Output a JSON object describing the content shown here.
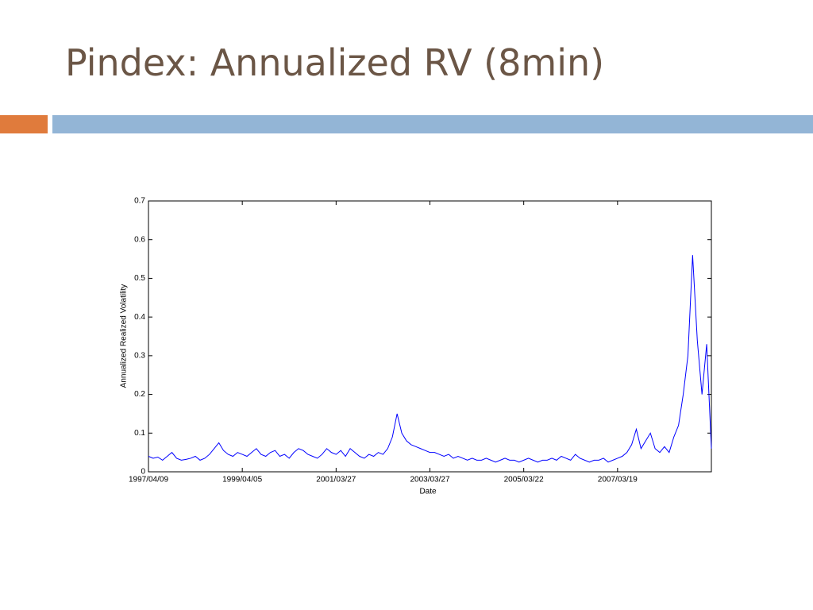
{
  "header": {
    "title": "Pindex: Annualized RV (8min)"
  },
  "chart_data": {
    "type": "line",
    "xlabel": "Date",
    "ylabel": "Annualized Realized Volatility",
    "categories": [
      "1997/04/09",
      null,
      null,
      null,
      null,
      null,
      null,
      null,
      null,
      null,
      null,
      null,
      null,
      null,
      null,
      null,
      null,
      null,
      null,
      null,
      "1999/04/05",
      null,
      null,
      null,
      null,
      null,
      null,
      null,
      null,
      null,
      null,
      null,
      null,
      null,
      null,
      null,
      null,
      null,
      null,
      null,
      "2001/03/27",
      null,
      null,
      null,
      null,
      null,
      null,
      null,
      null,
      null,
      null,
      null,
      null,
      null,
      null,
      null,
      null,
      null,
      null,
      null,
      "2003/03/27",
      null,
      null,
      null,
      null,
      null,
      null,
      null,
      null,
      null,
      null,
      null,
      null,
      null,
      null,
      null,
      null,
      null,
      null,
      null,
      "2005/03/22",
      null,
      null,
      null,
      null,
      null,
      null,
      null,
      null,
      null,
      null,
      null,
      null,
      null,
      null,
      null,
      null,
      null,
      null,
      null,
      "2007/03/19",
      null,
      null,
      null,
      null,
      null,
      null,
      null,
      null,
      null,
      null,
      null,
      null,
      null,
      null,
      null,
      null,
      null,
      null,
      null,
      null
    ],
    "values": [
      0.04,
      0.035,
      0.038,
      0.03,
      0.04,
      0.05,
      0.035,
      0.03,
      0.032,
      0.035,
      0.04,
      0.03,
      0.035,
      0.045,
      0.06,
      0.075,
      0.055,
      0.045,
      0.04,
      0.05,
      0.045,
      0.04,
      0.05,
      0.06,
      0.045,
      0.04,
      0.05,
      0.055,
      0.04,
      0.045,
      0.035,
      0.05,
      0.06,
      0.055,
      0.045,
      0.04,
      0.035,
      0.045,
      0.06,
      0.05,
      0.045,
      0.055,
      0.04,
      0.06,
      0.05,
      0.04,
      0.035,
      0.045,
      0.04,
      0.05,
      0.045,
      0.06,
      0.09,
      0.15,
      0.1,
      0.08,
      0.07,
      0.065,
      0.06,
      0.055,
      0.05,
      0.05,
      0.045,
      0.04,
      0.045,
      0.035,
      0.04,
      0.035,
      0.03,
      0.035,
      0.03,
      0.03,
      0.035,
      0.03,
      0.025,
      0.03,
      0.035,
      0.03,
      0.03,
      0.025,
      0.03,
      0.035,
      0.03,
      0.025,
      0.03,
      0.03,
      0.035,
      0.03,
      0.04,
      0.035,
      0.03,
      0.045,
      0.035,
      0.03,
      0.025,
      0.03,
      0.03,
      0.035,
      0.025,
      0.03,
      0.035,
      0.04,
      0.05,
      0.07,
      0.11,
      0.06,
      0.08,
      0.1,
      0.06,
      0.05,
      0.065,
      0.05,
      0.09,
      0.12,
      0.2,
      0.3,
      0.56,
      0.34,
      0.2,
      0.33,
      0.06
    ],
    "color": "#0000ff",
    "ylim": [
      0,
      0.7
    ],
    "yticks": [
      0,
      0.1,
      0.2,
      0.3,
      0.4,
      0.5,
      0.6,
      0.7
    ]
  }
}
